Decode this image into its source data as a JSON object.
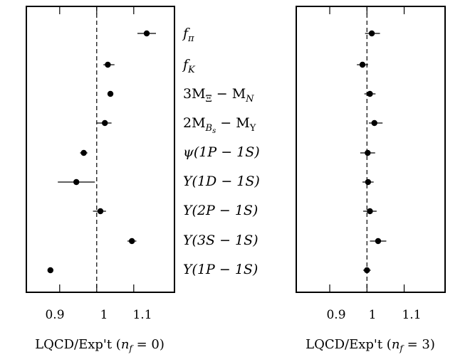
{
  "chart_data": [
    {
      "type": "scatter",
      "xlabel": "LQCD/Exp't (n_f = 0)",
      "xlim": [
        0.81,
        1.21
      ],
      "xticks": [
        "0.9",
        "1",
        "1.1"
      ],
      "reference_line": 1.0,
      "points": [
        {
          "category": "f_π",
          "value": 1.135,
          "err_low": 0.025,
          "err_high": 0.025
        },
        {
          "category": "f_K",
          "value": 1.03,
          "err_low": 0.012,
          "err_high": 0.018
        },
        {
          "category": "3M_Ξ − M_N",
          "value": 1.037,
          "err_low": 0.007,
          "err_high": 0.007
        },
        {
          "category": "2M_B_s − M_Υ",
          "value": 1.022,
          "err_low": 0.022,
          "err_high": 0.018
        },
        {
          "category": "ψ(1P − 1S)",
          "value": 0.965,
          "err_low": 0.01,
          "err_high": 0.01
        },
        {
          "category": "Υ(1D − 1S)",
          "value": 0.945,
          "err_low": 0.05,
          "err_high": 0.05
        },
        {
          "category": "Υ(2P − 1S)",
          "value": 1.01,
          "err_low": 0.02,
          "err_high": 0.015
        },
        {
          "category": "Υ(3S − 1S)",
          "value": 1.095,
          "err_low": 0.012,
          "err_high": 0.012
        },
        {
          "category": "Υ(1P − 1S)",
          "value": 0.875,
          "err_low": 0.005,
          "err_high": 0.005
        }
      ]
    },
    {
      "type": "scatter",
      "xlabel": "LQCD/Exp't (n_f = 3)",
      "xlim": [
        0.81,
        1.21
      ],
      "xticks": [
        "0.9",
        "1",
        "1.1"
      ],
      "reference_line": 1.0,
      "points": [
        {
          "category": "f_π",
          "value": 1.013,
          "err_low": 0.018,
          "err_high": 0.022
        },
        {
          "category": "f_K",
          "value": 0.988,
          "err_low": 0.015,
          "err_high": 0.015
        },
        {
          "category": "3M_Ξ − M_N",
          "value": 1.008,
          "err_low": 0.015,
          "err_high": 0.015
        },
        {
          "category": "2M_B_s − M_Υ",
          "value": 1.02,
          "err_low": 0.015,
          "err_high": 0.022
        },
        {
          "category": "ψ(1P − 1S)",
          "value": 1.002,
          "err_low": 0.02,
          "err_high": 0.02
        },
        {
          "category": "Υ(1D − 1S)",
          "value": 1.003,
          "err_low": 0.015,
          "err_high": 0.015
        },
        {
          "category": "Υ(2P − 1S)",
          "value": 1.008,
          "err_low": 0.018,
          "err_high": 0.018
        },
        {
          "category": "Υ(3S − 1S)",
          "value": 1.03,
          "err_low": 0.022,
          "err_high": 0.022
        },
        {
          "category": "Υ(1P − 1S)",
          "value": 1.0,
          "err_low": 0.01,
          "err_high": 0.01
        }
      ]
    }
  ],
  "labels": {
    "xlabel_left_prefix": "LQCD/Exp't (",
    "xlabel_right_prefix": "LQCD/Exp't (",
    "nf_symbol": "n",
    "nf_sub": "f",
    "nf_left_value": " = 0)",
    "nf_right_value": " = 3)",
    "tick_09": "0.9",
    "tick_1": "1",
    "tick_11": "1.1",
    "q1_main": "f",
    "q1_sub": "π",
    "q2_main": "f",
    "q2_sub": "K",
    "q3_pre": "3M",
    "q3_sub": "Ξ",
    "q3_post": " − M",
    "q3_sub2": "N",
    "q4_pre": "2M",
    "q4_sub": "B",
    "q4_subsub": "s",
    "q4_post": " − M",
    "q4_sub2": "Υ",
    "q5": "ψ(1P − 1S)",
    "q6": "Υ(1D − 1S)",
    "q7": "Υ(2P − 1S)",
    "q8": "Υ(3S − 1S)",
    "q9": "Υ(1P − 1S)"
  }
}
